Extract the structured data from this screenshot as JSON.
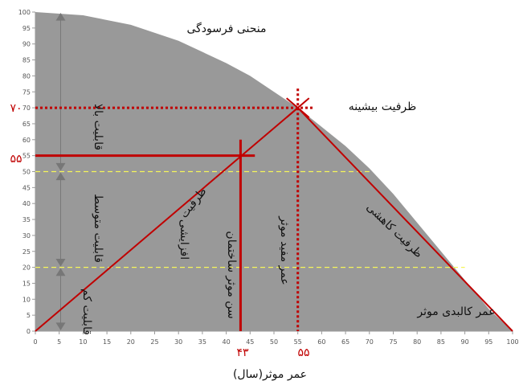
{
  "chart_data": {
    "type": "area",
    "curve_name": "منحنی فرسودگی",
    "x_axis": {
      "label": "عمر موثر(سال)",
      "min": 0,
      "max": 100,
      "step": 5
    },
    "y_axis": {
      "min": 0,
      "max": 100,
      "step": 5
    },
    "curve_points": [
      [
        0,
        100
      ],
      [
        10,
        99
      ],
      [
        20,
        96
      ],
      [
        30,
        91
      ],
      [
        40,
        84
      ],
      [
        45,
        80
      ],
      [
        50,
        75
      ],
      [
        55,
        70
      ],
      [
        60,
        64
      ],
      [
        65,
        58
      ],
      [
        70,
        51
      ],
      [
        75,
        43
      ],
      [
        80,
        34
      ],
      [
        85,
        25
      ],
      [
        90,
        16
      ],
      [
        95,
        7
      ],
      [
        100,
        0
      ]
    ],
    "capability_zones": [
      {
        "name": "قابلیت بالا",
        "from": 50,
        "to": 100
      },
      {
        "name": "قابلیت متوسط",
        "from": 20,
        "to": 50
      },
      {
        "name": "قابلیت کم",
        "from": 0,
        "to": 20
      }
    ],
    "threshold_lines": [
      50,
      20
    ],
    "peak": {
      "x": 55,
      "y": 70,
      "x_label": "۵۵",
      "y_label": "۷۰",
      "label": "ظرفیت  بیشینه"
    },
    "building_age": {
      "x": 43,
      "y": 55,
      "x_label": "۴۳",
      "y_label": "۵۵",
      "label": "سن موثر ساختمان"
    },
    "increasing_label_1": "ظرفیت",
    "increasing_label_2": "افزایشی",
    "decreasing_label": "ظرفیت کاهشی",
    "useful_life_label": "عمر مفید موثر",
    "physical_life_label": "عمر کالبدی موثر"
  },
  "colors": {
    "curve_fill": "#999999",
    "red": "#c00000",
    "threshold": "#f5f55a",
    "arrow": "#777777"
  }
}
